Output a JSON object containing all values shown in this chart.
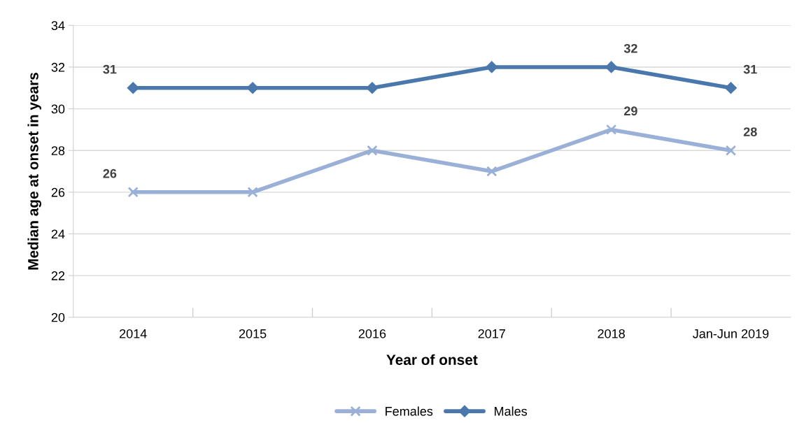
{
  "chart_data": {
    "type": "line",
    "xlabel": "Year of onset",
    "ylabel": "Median age at onset in years",
    "categories": [
      "2014",
      "2015",
      "2016",
      "2017",
      "2018",
      "Jan-Jun 2019"
    ],
    "series": [
      {
        "name": "Females",
        "color": "#9bb0d7",
        "marker": "cross",
        "values": [
          26,
          26,
          28,
          27,
          29,
          28
        ],
        "value_labels": [
          "26",
          null,
          null,
          null,
          "29",
          "28"
        ]
      },
      {
        "name": "Males",
        "color": "#4a78ad",
        "marker": "diamond",
        "values": [
          31,
          31,
          31,
          32,
          32,
          31
        ],
        "value_labels": [
          "31",
          null,
          null,
          null,
          "32",
          "31"
        ]
      }
    ],
    "ylim": [
      20,
      34
    ],
    "yticks": [
      20,
      22,
      24,
      26,
      28,
      30,
      32,
      34
    ],
    "grid": "y",
    "legend": "bottom",
    "line_style": "solid"
  }
}
